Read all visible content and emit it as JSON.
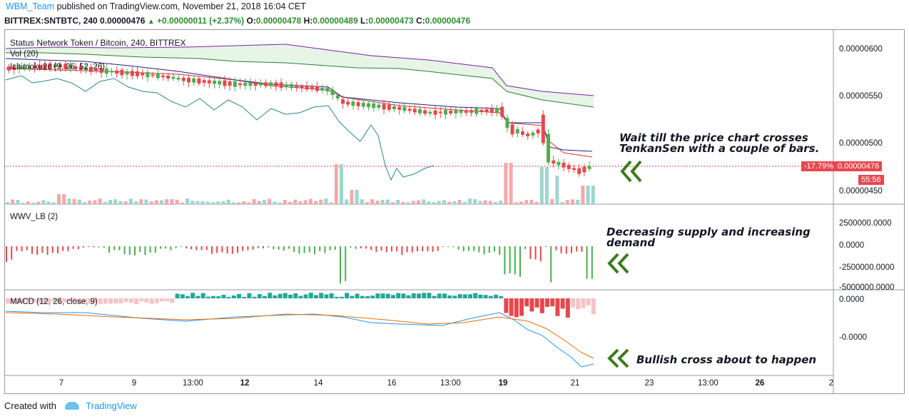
{
  "header": {
    "user": "WBM_Team",
    "published": "published on TradingView.com, November 21, 2018 16:04 CET",
    "symbol": "BITTREX:SNTBTC, 240",
    "last": "0.00000476",
    "change_arrow": "▲",
    "change": "+0.00000011 (+2.37%)",
    "o_label": "O:",
    "o": "0.00000478",
    "h_label": "H:",
    "h": "0.00000489",
    "l_label": "L:",
    "l": "0.00000473",
    "c_label": "C:",
    "c": "0.00000476"
  },
  "panes": {
    "main": {
      "title": "Status Network Token / Bitcoin, 240, BITTREX",
      "vol_label": "Vol (20)",
      "ichimoku_label": "Ichimoku2c (9, 26, 52, 26)",
      "y_ticks": [
        "0.00000600",
        "0.00000550",
        "0.00000500",
        "0.00000450"
      ],
      "pct_tag": "-17.79%",
      "price_tag": "0.00000476",
      "timer_tag": "55:56"
    },
    "wwv": {
      "label": "WWV_LB (2)",
      "y_ticks": [
        "2500000.0000",
        "0.0000",
        "-2500000.0000",
        "-5000000.0000"
      ]
    },
    "macd": {
      "label": "MACD (12, 26, close, 9)",
      "y_ticks": [
        "0.0000",
        "-0.0000"
      ]
    }
  },
  "x_axis": [
    "7",
    "9",
    "13:00",
    "12",
    "14",
    "16",
    "13:00",
    "19",
    "21",
    "23",
    "13:00",
    "26",
    "2"
  ],
  "annotations": {
    "note1_line1": "Wait till the price chart crosses",
    "note1_line2": "TenkanSen with a couple of bars.",
    "note2_line1": "Decreasing supply and increasing",
    "note2_line2": "demand",
    "note3": "Bullish cross about to happen"
  },
  "footer": {
    "created_with": "Created with",
    "brand": "TradingView"
  },
  "colors": {
    "up": "#4caf50",
    "down": "#e5484d",
    "teal": "#26a69a",
    "accent": "#2196f3",
    "arrow": "#3d7a1f"
  }
}
